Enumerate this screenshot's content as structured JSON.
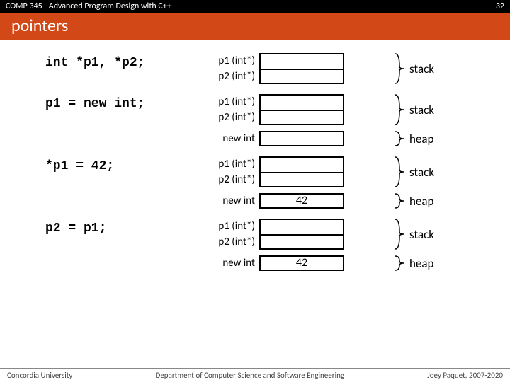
{
  "header": {
    "course": "COMP 345 - Advanced Program Design with C++",
    "slide_no": "32",
    "title": "pointers",
    "band_color": "#d34817"
  },
  "steps": [
    {
      "code": "int *p1, *p2;",
      "blocks": [
        {
          "rows": [
            {
              "label": "p1 (int*)",
              "value": ""
            },
            {
              "label": "p2 (int*)",
              "value": ""
            }
          ],
          "region": "stack"
        }
      ]
    },
    {
      "code": "p1 = new int;",
      "blocks": [
        {
          "rows": [
            {
              "label": "p1 (int*)",
              "value": ""
            },
            {
              "label": "p2 (int*)",
              "value": ""
            }
          ],
          "region": "stack"
        },
        {
          "rows": [
            {
              "label": "new int",
              "value": ""
            }
          ],
          "region": "heap"
        }
      ]
    },
    {
      "code": "*p1 = 42;",
      "blocks": [
        {
          "rows": [
            {
              "label": "p1 (int*)",
              "value": ""
            },
            {
              "label": "p2 (int*)",
              "value": ""
            }
          ],
          "region": "stack"
        },
        {
          "rows": [
            {
              "label": "new int",
              "value": "42"
            }
          ],
          "region": "heap"
        }
      ]
    },
    {
      "code": "p2 = p1;",
      "blocks": [
        {
          "rows": [
            {
              "label": "p1 (int*)",
              "value": ""
            },
            {
              "label": "p2 (int*)",
              "value": ""
            }
          ],
          "region": "stack"
        },
        {
          "rows": [
            {
              "label": "new int",
              "value": "42"
            }
          ],
          "region": "heap"
        }
      ]
    }
  ],
  "footer": {
    "left": "Concordia University",
    "center": "Department of Computer Science and Software Engineering",
    "right": "Joey Paquet, 2007-2020"
  },
  "style": {
    "code_font": "Courier New",
    "double_bracket_svg_h": 44,
    "single_bracket_svg_h": 22
  }
}
